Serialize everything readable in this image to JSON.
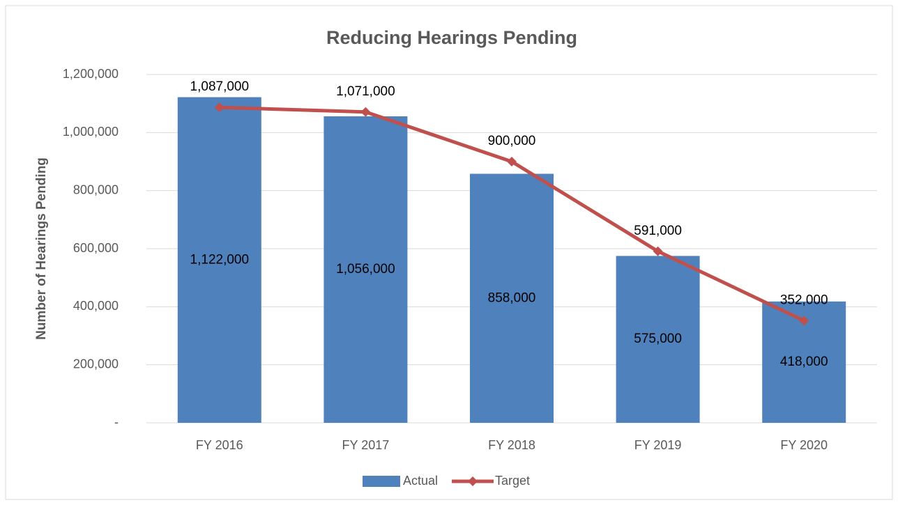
{
  "chart_data": {
    "type": "bar",
    "title": "Reducing Hearings Pending",
    "y_label": "Number of Hearings  Pending",
    "categories": [
      "FY 2016",
      "FY 2017",
      "FY 2018",
      "FY 2019",
      "FY 2020"
    ],
    "series": [
      {
        "name": "Actual",
        "type": "bar",
        "color": "#4f81bd",
        "values": [
          1122000,
          1056000,
          858000,
          575000,
          418000
        ],
        "value_labels": [
          "1,122,000",
          "1,056,000",
          "858,000",
          "575,000",
          "418,000"
        ]
      },
      {
        "name": "Target",
        "type": "line",
        "color": "#c0504d",
        "values": [
          1087000,
          1071000,
          900000,
          591000,
          352000
        ],
        "value_labels": [
          "1,087,000",
          "1,071,000",
          "900,000",
          "591,000",
          "352,000"
        ]
      }
    ],
    "ylim": [
      0,
      1200000
    ],
    "yticks": [
      {
        "value": 0,
        "label": "-"
      },
      {
        "value": 200000,
        "label": "200,000"
      },
      {
        "value": 400000,
        "label": "400,000"
      },
      {
        "value": 600000,
        "label": "600,000"
      },
      {
        "value": 800000,
        "label": "800,000"
      },
      {
        "value": 1000000,
        "label": "1,000,000"
      },
      {
        "value": 1200000,
        "label": "1,200,000"
      }
    ],
    "grid": true,
    "legend": "bottom"
  }
}
